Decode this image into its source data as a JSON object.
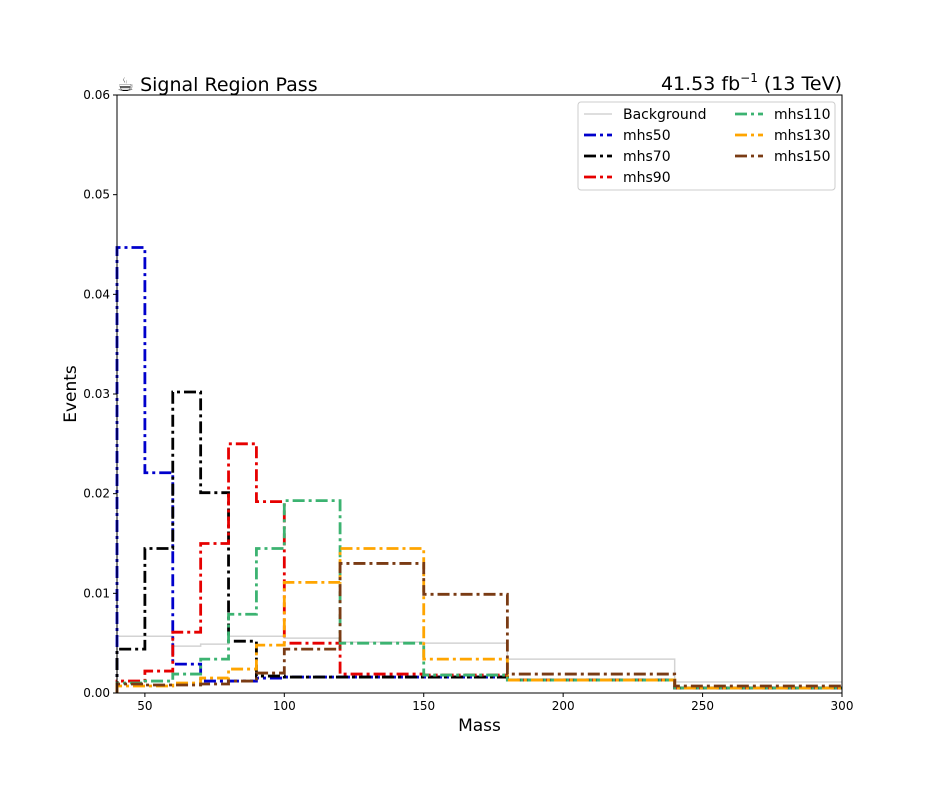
{
  "chart_data": {
    "type": "step",
    "title_left": "☕ Signal Region Pass",
    "title_right_lumi": "41.53 fb",
    "title_right_exp": "−1",
    "title_right_energy": " (13 TeV)",
    "xlabel": "Mass",
    "ylabel": "Events",
    "xlim": [
      40,
      300
    ],
    "ylim": [
      0,
      0.06
    ],
    "xticks": [
      "50",
      "100",
      "150",
      "200",
      "250",
      "300"
    ],
    "yticks": [
      "0.00",
      "0.01",
      "0.02",
      "0.03",
      "0.04",
      "0.05",
      "0.06"
    ],
    "bin_edges": [
      40,
      50,
      60,
      70,
      80,
      90,
      100,
      120,
      150,
      180,
      240,
      300
    ],
    "legend_position": "top-right",
    "series": [
      {
        "name": "Background",
        "color": "#d3d3d3",
        "style": "solid",
        "values": [
          0.0057,
          0.0057,
          0.0047,
          0.0049,
          0.0057,
          0.0057,
          0.0055,
          0.0051,
          0.005,
          0.0034,
          0.0011
        ]
      },
      {
        "name": "mhs50",
        "color": "#0000cc",
        "style": "dashdot",
        "values": [
          0.0447,
          0.0221,
          0.0029,
          0.0012,
          0.0012,
          0.0015,
          0.0016,
          0.0016,
          0.0016,
          0.0013,
          0.0005
        ]
      },
      {
        "name": "mhs70",
        "color": "#000000",
        "style": "dashdot",
        "values": [
          0.0044,
          0.0145,
          0.0302,
          0.0201,
          0.0052,
          0.0017,
          0.0016,
          0.0016,
          0.0016,
          0.0013,
          0.0005
        ]
      },
      {
        "name": "mhs90",
        "color": "#e60000",
        "style": "dashdot",
        "values": [
          0.0012,
          0.0022,
          0.0061,
          0.015,
          0.025,
          0.0192,
          0.005,
          0.0019,
          0.0018,
          0.0013,
          0.0005
        ]
      },
      {
        "name": "mhs110",
        "color": "#3cb371",
        "style": "dashdot",
        "values": [
          0.001,
          0.0012,
          0.0019,
          0.0034,
          0.0079,
          0.0145,
          0.0193,
          0.005,
          0.0018,
          0.0013,
          0.0005
        ]
      },
      {
        "name": "mhs130",
        "color": "#ffa500",
        "style": "dashdot",
        "values": [
          0.0007,
          0.0007,
          0.001,
          0.0015,
          0.0024,
          0.0048,
          0.0111,
          0.0145,
          0.0034,
          0.0013,
          0.0005
        ]
      },
      {
        "name": "mhs150",
        "color": "#7a3b14",
        "style": "dashdot",
        "values": [
          0.0009,
          0.0008,
          0.0008,
          0.0009,
          0.0012,
          0.002,
          0.0044,
          0.013,
          0.0099,
          0.0019,
          0.0007
        ]
      }
    ]
  }
}
